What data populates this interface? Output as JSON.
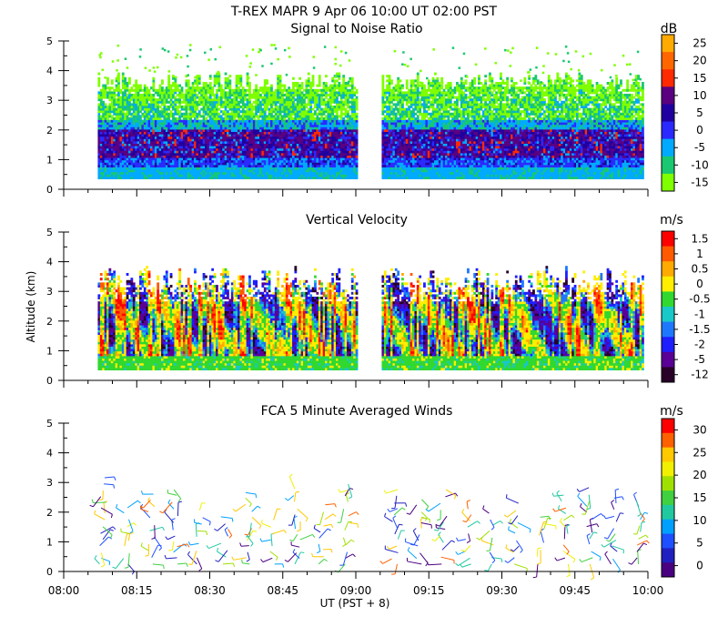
{
  "figure_title": "T-REX  MAPR  9 Apr 06  10:00 UT  02:00  PST",
  "shared_axes": {
    "ylabel": "Altitude (km)",
    "xlabel": "UT  (PST + 8)",
    "x_ticks": [
      "08:00",
      "08:15",
      "08:30",
      "08:45",
      "09:00",
      "09:15",
      "09:30",
      "09:45",
      "10:00"
    ],
    "x_tick_minutes": [
      0,
      15,
      30,
      45,
      60,
      75,
      90,
      105,
      120
    ],
    "x_range_minutes": [
      0,
      120
    ],
    "y_ticks": [
      "0",
      "1",
      "2",
      "3",
      "4",
      "5"
    ],
    "y_range_km": [
      0,
      5
    ],
    "data_gap_minutes": [
      60,
      65
    ],
    "data_start_minutes": 7,
    "data_end_minutes": 119
  },
  "chart_data": [
    {
      "type": "heatmap",
      "title": "Signal to Noise Ratio",
      "colorbar_unit": "dB",
      "colorbar_ticks": [
        "25",
        "20",
        "15",
        "10",
        "5",
        "0",
        "-5",
        "-10",
        "-15"
      ],
      "colorbar_colors": [
        "#ffaa00",
        "#ff6600",
        "#ff2a00",
        "#5a0080",
        "#2000a0",
        "#2a2aff",
        "#00aaff",
        "#19c870",
        "#7fff00"
      ],
      "xlabel": "",
      "ylabel": "",
      "xlim_minutes": [
        0,
        120
      ],
      "ylim_km": [
        0,
        5
      ]
    },
    {
      "type": "heatmap",
      "title": "Vertical Velocity",
      "colorbar_unit": "m/s",
      "colorbar_ticks": [
        "1.5",
        "1",
        "0.5",
        "0",
        "-0.5",
        "-1",
        "-1.5",
        "-2",
        "-5",
        "-12"
      ],
      "colorbar_colors": [
        "#ff0000",
        "#ff5a00",
        "#ffaa00",
        "#ffee00",
        "#30d830",
        "#19c8c8",
        "#1e78ff",
        "#1e1eff",
        "#5a0096",
        "#280028"
      ],
      "xlabel": "",
      "ylabel": "Altitude (km)",
      "xlim_minutes": [
        0,
        120
      ],
      "ylim_km": [
        0,
        5
      ]
    },
    {
      "type": "scatter",
      "title": "FCA 5 Minute Averaged Winds",
      "colorbar_unit": "m/s",
      "colorbar_ticks": [
        "30",
        "25",
        "20",
        "15",
        "10",
        "5",
        "0"
      ],
      "colorbar_colors": [
        "#ff0000",
        "#ff6000",
        "#ffc800",
        "#f0f000",
        "#a0e000",
        "#40d040",
        "#20c8a0",
        "#00a0ff",
        "#1e50ff",
        "#2020c0",
        "#4a0080"
      ],
      "xlabel": "UT  (PST + 8)",
      "ylabel": "",
      "xlim_minutes": [
        0,
        120
      ],
      "ylim_km": [
        0,
        5
      ],
      "wind_profile_times_minutes": [
        8,
        13,
        18,
        23,
        28,
        33,
        38,
        43,
        48,
        53,
        58,
        68,
        73,
        78,
        83,
        88,
        93,
        98,
        103,
        108,
        113,
        118
      ]
    }
  ]
}
